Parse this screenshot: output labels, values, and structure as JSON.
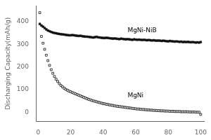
{
  "chart_data": {
    "type": "scatter",
    "title": "",
    "xlabel": "",
    "ylabel": "Discharging Capacity(mAh/g)",
    "xlim": [
      -1,
      102
    ],
    "ylim": [
      -40,
      470
    ],
    "xticks": [
      0,
      20,
      40,
      60,
      80,
      100
    ],
    "yticks": [
      0,
      100,
      200,
      300,
      400
    ],
    "grid": false,
    "series": [
      {
        "color": "#111111",
        "marker": "square",
        "x": [
          1,
          2,
          3,
          4,
          5,
          6,
          7,
          8,
          9,
          10,
          11,
          12,
          13,
          14,
          15,
          16,
          17,
          18,
          19,
          20,
          21,
          22,
          23,
          24,
          25,
          26,
          27,
          28,
          29,
          30,
          31,
          32,
          33,
          34,
          35,
          36,
          37,
          38,
          39,
          40,
          41,
          42,
          43,
          44,
          45,
          46,
          47,
          48,
          49,
          50,
          51,
          52,
          53,
          54,
          55,
          56,
          57,
          58,
          59,
          60,
          61,
          62,
          63,
          64,
          65,
          66,
          67,
          68,
          69,
          70,
          71,
          72,
          73,
          74,
          75,
          76,
          77,
          78,
          79,
          80,
          81,
          82,
          83,
          84,
          85,
          86,
          87,
          88,
          89,
          90,
          91,
          92,
          93,
          94,
          95,
          96,
          97,
          98,
          99,
          100
        ],
        "values": [
          390,
          383,
          378,
          372,
          366,
          361,
          358,
          355,
          352,
          350,
          349,
          347,
          346,
          345,
          344,
          343,
          342,
          341,
          340,
          340,
          341,
          340,
          339,
          338,
          337,
          338,
          336,
          335,
          334,
          334,
          333,
          332,
          331,
          330,
          332,
          333,
          331,
          330,
          329,
          328,
          328,
          329,
          328,
          327,
          326,
          325,
          326,
          325,
          324,
          323,
          325,
          324,
          323,
          322,
          323,
          322,
          321,
          320,
          322,
          321,
          320,
          321,
          320,
          319,
          320,
          319,
          318,
          319,
          318,
          317,
          318,
          317,
          316,
          317,
          316,
          315,
          316,
          315,
          314,
          313,
          315,
          314,
          313,
          312,
          313,
          312,
          311,
          312,
          310,
          311,
          310,
          311,
          310,
          309,
          310,
          309,
          308,
          309,
          308,
          310
        ]
      },
      {
        "color": "#111111",
        "marker": "open_square",
        "x": [
          1,
          2,
          3,
          4,
          5,
          6,
          7,
          8,
          9,
          10,
          11,
          12,
          13,
          14,
          15,
          16,
          17,
          18,
          19,
          20,
          21,
          22,
          23,
          24,
          25,
          26,
          27,
          28,
          29,
          30,
          31,
          32,
          33,
          34,
          35,
          36,
          37,
          38,
          39,
          40,
          41,
          42,
          43,
          44,
          45,
          46,
          47,
          48,
          49,
          50,
          51,
          52,
          53,
          54,
          55,
          56,
          57,
          58,
          59,
          60,
          61,
          62,
          63,
          64,
          65,
          66,
          67,
          68,
          69,
          70,
          71,
          72,
          73,
          74,
          75,
          76,
          77,
          78,
          79,
          80,
          81,
          82,
          83,
          84,
          85,
          86,
          87,
          88,
          89,
          90,
          91,
          92,
          93,
          94,
          95,
          96,
          97,
          98,
          99,
          100
        ],
        "values": [
          440,
          335,
          305,
          278,
          252,
          228,
          207,
          188,
          172,
          158,
          146,
          136,
          126,
          118,
          112,
          106,
          101,
          97,
          93,
          90,
          87,
          84,
          81,
          78,
          75,
          72,
          69,
          66,
          63,
          60,
          57,
          55,
          52,
          50,
          48,
          46,
          44,
          42,
          40,
          38,
          37,
          35,
          34,
          32,
          31,
          30,
          28,
          27,
          26,
          25,
          24,
          23,
          22,
          21,
          20,
          19,
          18,
          17,
          16,
          15,
          14,
          14,
          13,
          12,
          12,
          11,
          10,
          10,
          9,
          9,
          8,
          8,
          7,
          7,
          6,
          6,
          6,
          5,
          5,
          5,
          4,
          4,
          4,
          3,
          3,
          3,
          3,
          2,
          2,
          2,
          2,
          2,
          1,
          1,
          1,
          1,
          0,
          0,
          0,
          -10
        ]
      }
    ],
    "annotations": [
      {
        "text": "MgNi-NiB",
        "x": 55,
        "y": 348
      },
      {
        "text": "MgNi",
        "x": 55,
        "y": 58
      }
    ]
  }
}
